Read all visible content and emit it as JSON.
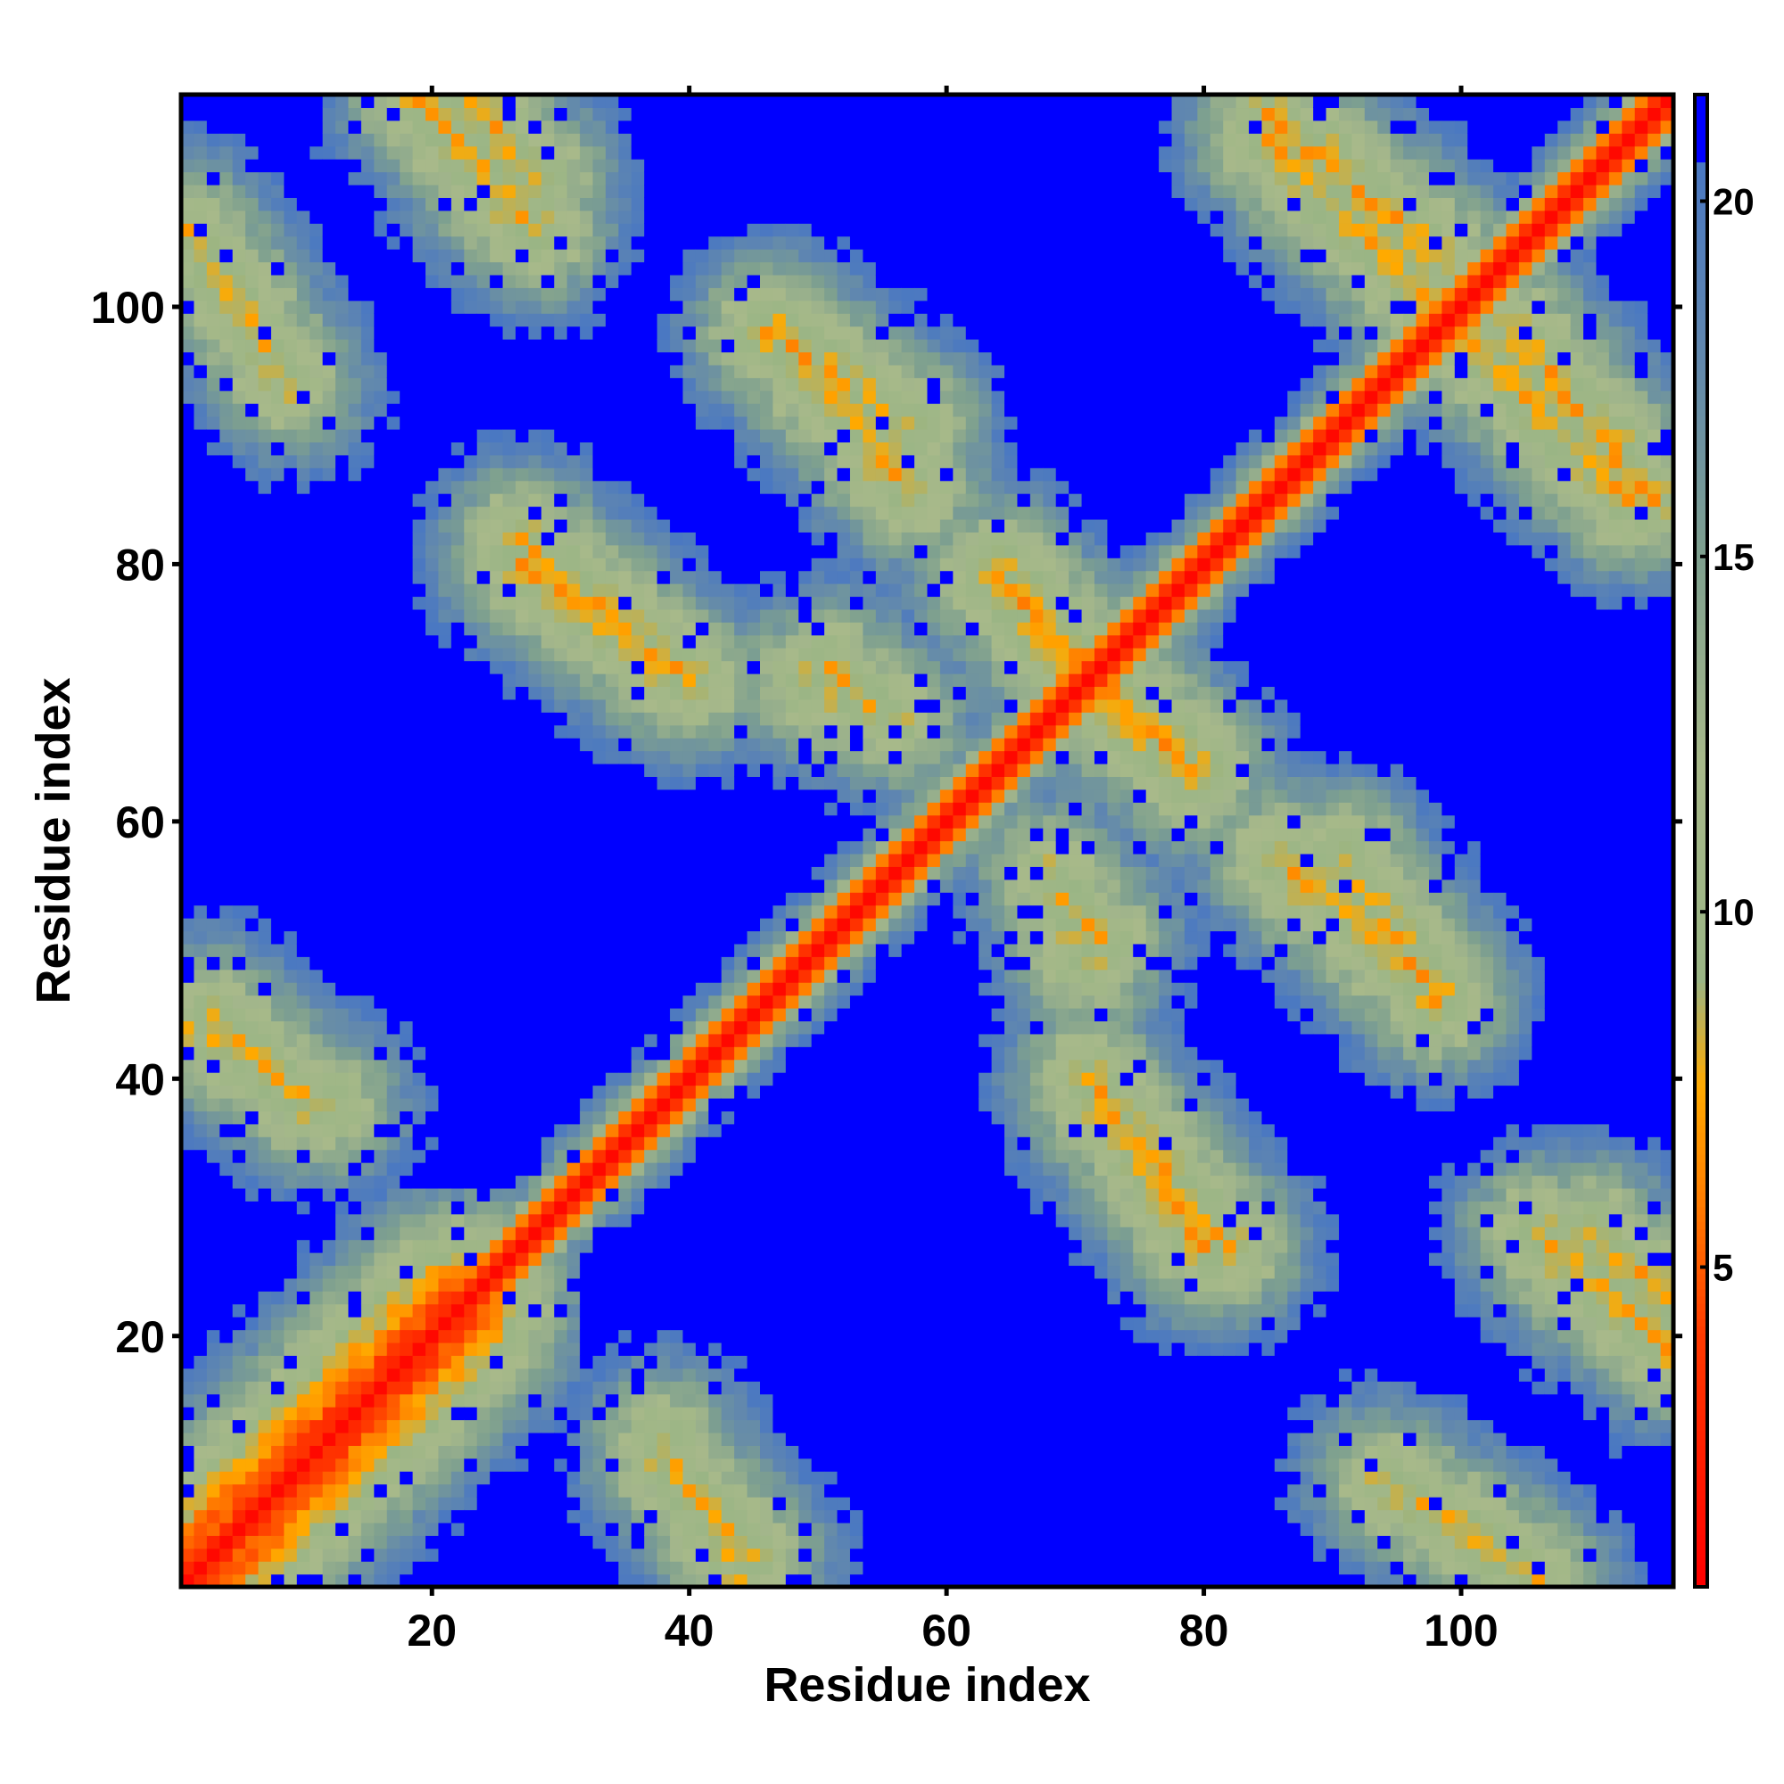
{
  "chart_data": {
    "type": "heatmap",
    "title": "",
    "xlabel": "Residue index",
    "ylabel": "Residue index",
    "n_residues": 116,
    "xlim": [
      0.5,
      116.5
    ],
    "ylim": [
      0.5,
      116.5
    ],
    "x_ticks": [
      20,
      40,
      60,
      80,
      100
    ],
    "y_ticks": [
      20,
      40,
      60,
      80,
      100
    ],
    "colorbar": {
      "ticks": [
        5,
        10,
        15,
        20
      ],
      "range": [
        0.5,
        21.5
      ],
      "scale": [
        {
          "value": 0.5,
          "color": "#ff0000"
        },
        {
          "value": 4.0,
          "color": "#ff3a00"
        },
        {
          "value": 6.0,
          "color": "#ff8000"
        },
        {
          "value": 7.5,
          "color": "#ffaa00"
        },
        {
          "value": 9.0,
          "color": "#9ab585"
        },
        {
          "value": 12.0,
          "color": "#a8b98a"
        },
        {
          "value": 15.0,
          "color": "#7ea08f"
        },
        {
          "value": 18.0,
          "color": "#5f86b0"
        },
        {
          "value": 20.5,
          "color": "#4a78c2"
        },
        {
          "value": 21.5,
          "color": "#0000ff"
        }
      ],
      "saturated_above": 20.5,
      "saturated_color": "#0000ff"
    },
    "description_of_values": "symmetric residue-residue distance map; diagonal ~0 (red); off-diagonal contact bands (orange/green) at antiparallel pairings; large regions above 20 (blue)",
    "diagonal_value": 1.0,
    "contact_bands": [
      {
        "i_range": [
          1,
          22
        ],
        "j_range": [
          1,
          22
        ],
        "type": "parallel",
        "min": 1.0
      },
      {
        "i_range": [
          23,
          28
        ],
        "j_range": [
          110,
          116
        ],
        "type": "anti",
        "min": 6.0
      },
      {
        "i_range": [
          3,
          10
        ],
        "j_range": [
          38,
          45
        ],
        "type": "anti",
        "min": 6.5
      },
      {
        "i_range": [
          27,
          38
        ],
        "j_range": [
          72,
          82
        ],
        "type": "anti",
        "min": 6.0
      },
      {
        "i_range": [
          38,
          44
        ],
        "j_range": [
          1,
          12
        ],
        "type": "anti",
        "min": 6.5
      },
      {
        "i_range": [
          47,
          57
        ],
        "j_range": [
          86,
          98
        ],
        "type": "anti",
        "min": 6.0
      },
      {
        "i_range": [
          51,
          54
        ],
        "j_range": [
          69,
          72
        ],
        "type": "anti",
        "min": 6.5
      },
      {
        "i_range": [
          64,
          71
        ],
        "j_range": [
          71,
          79
        ],
        "type": "anti",
        "min": 5.5
      },
      {
        "i_range": [
          71,
          80
        ],
        "j_range": [
          27,
          40
        ],
        "type": "anti",
        "min": 6.0
      },
      {
        "i_range": [
          68,
          71
        ],
        "j_range": [
          49,
          56
        ],
        "type": "anti",
        "min": 6.5
      },
      {
        "i_range": [
          72,
          79
        ],
        "j_range": [
          64,
          71
        ],
        "type": "anti",
        "min": 5.5
      },
      {
        "i_range": [
          85,
          98
        ],
        "j_range": [
          104,
          115
        ],
        "type": "anti",
        "min": 6.0
      },
      {
        "i_range": [
          91,
          98
        ],
        "j_range": [
          46,
          57
        ],
        "type": "anti",
        "min": 6.0
      },
      {
        "i_range": [
          100,
          113
        ],
        "j_range": [
          85,
          98
        ],
        "type": "anti",
        "min": 6.0
      },
      {
        "i_range": [
          106,
          116
        ],
        "j_range": [
          19,
          28
        ],
        "type": "anti",
        "min": 6.0
      },
      {
        "i_range": [
          94,
          106
        ],
        "j_range": [
          1,
          9
        ],
        "type": "anti",
        "min": 6.5
      }
    ]
  }
}
